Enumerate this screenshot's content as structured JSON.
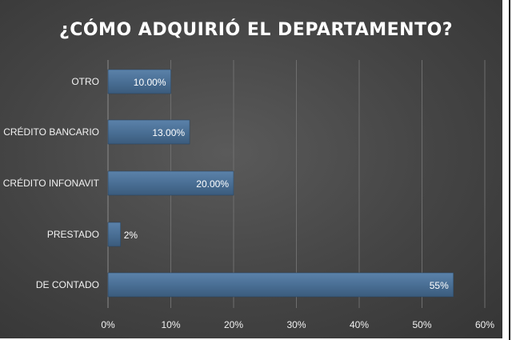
{
  "chart_data": {
    "type": "bar",
    "orientation": "horizontal",
    "title": "¿CÓMO ADQUIRIÓ EL DEPARTAMENTO?",
    "categories": [
      "OTRO",
      "CRÉDITO BANCARIO",
      "CRÉDITO INFONAVIT",
      "PRESTADO",
      "DE CONTADO"
    ],
    "values": [
      10,
      13,
      20,
      2,
      55
    ],
    "data_labels": [
      "10.00%",
      "13.00%",
      "20.00%",
      "2%",
      "55%"
    ],
    "xlim": [
      0,
      60
    ],
    "xticks": [
      0,
      10,
      20,
      30,
      40,
      50,
      60
    ],
    "xtick_labels": [
      "0%",
      "10%",
      "20%",
      "30%",
      "40%",
      "50%",
      "60%"
    ],
    "xlabel": "",
    "ylabel": "",
    "grid": true,
    "legend": "none",
    "bar_color": "#4a6f95",
    "background_color": "#474747",
    "text_color": "#ffffff"
  }
}
